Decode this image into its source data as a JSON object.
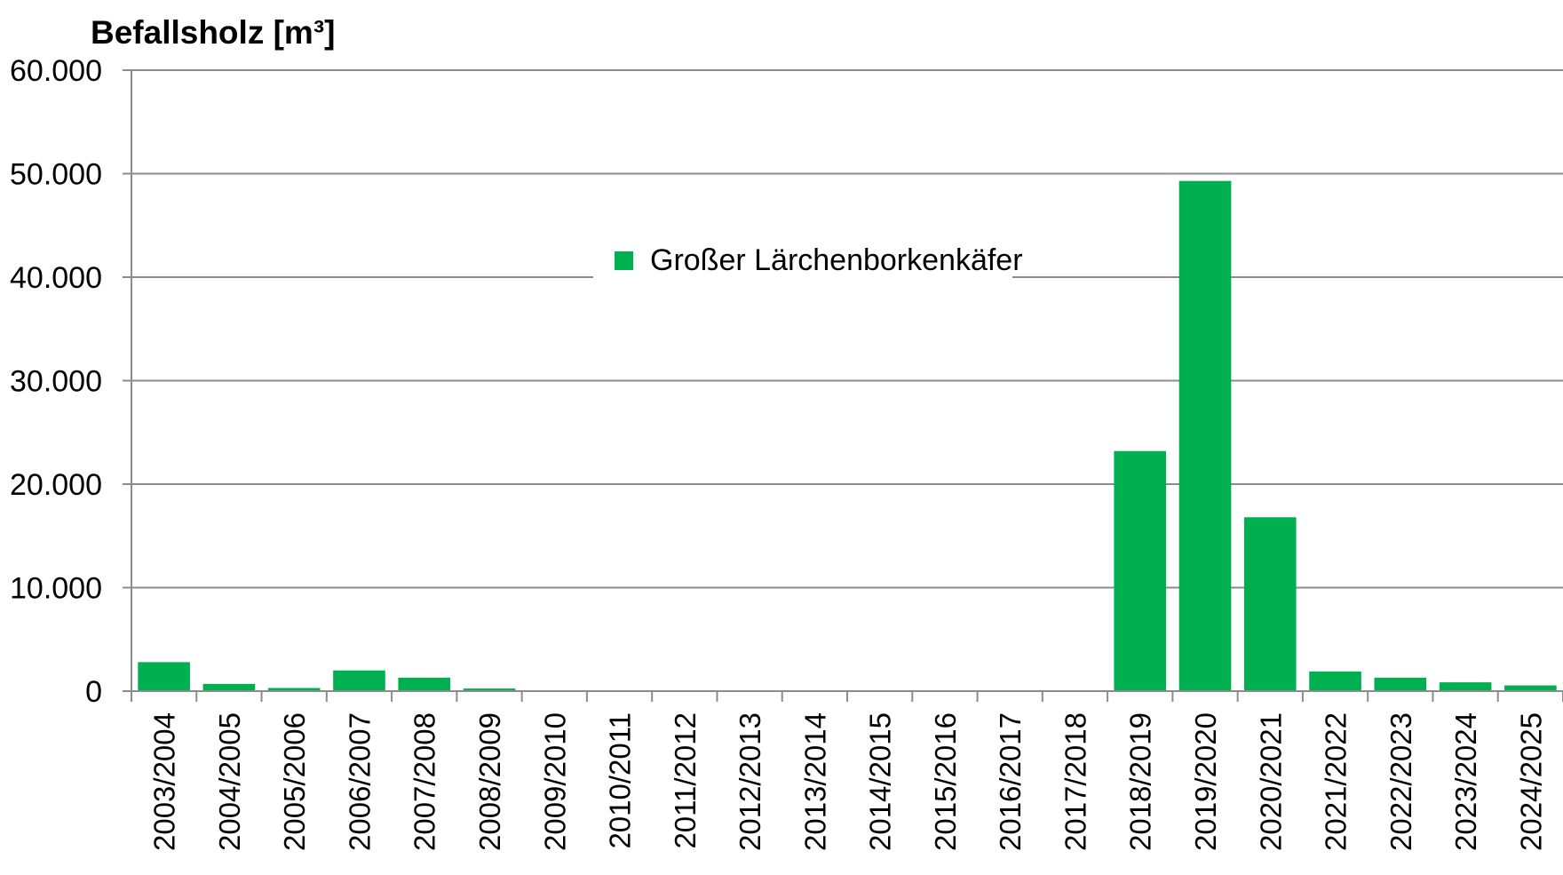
{
  "chart_data": {
    "type": "bar",
    "ylabel": "Befallsholz [m³]",
    "ylim": [
      0,
      60000
    ],
    "yticks": [
      0,
      10000,
      20000,
      30000,
      40000,
      50000,
      60000
    ],
    "ytick_labels": [
      "0",
      "10.000",
      "20.000",
      "30.000",
      "40.000",
      "50.000",
      "60.000"
    ],
    "grid": true,
    "legend_position": "top-center",
    "categories": [
      "2003/2004",
      "2004/2005",
      "2005/2006",
      "2006/2007",
      "2007/2008",
      "2008/2009",
      "2009/2010",
      "2010/2011",
      "2011/2012",
      "2012/2013",
      "2013/2014",
      "2014/2015",
      "2015/2016",
      "2016/2017",
      "2017/2018",
      "2018/2019",
      "2019/2020",
      "2020/2021",
      "2021/2022",
      "2022/2023",
      "2023/2024",
      "2024/2025"
    ],
    "series": [
      {
        "name": "Großer Lärchenborkenkäfer",
        "color": "#00b050",
        "values": [
          2800,
          700,
          300,
          2000,
          1300,
          250,
          0,
          0,
          50,
          50,
          0,
          0,
          0,
          0,
          0,
          23200,
          49300,
          16800,
          1900,
          1300,
          850,
          550
        ]
      }
    ]
  }
}
